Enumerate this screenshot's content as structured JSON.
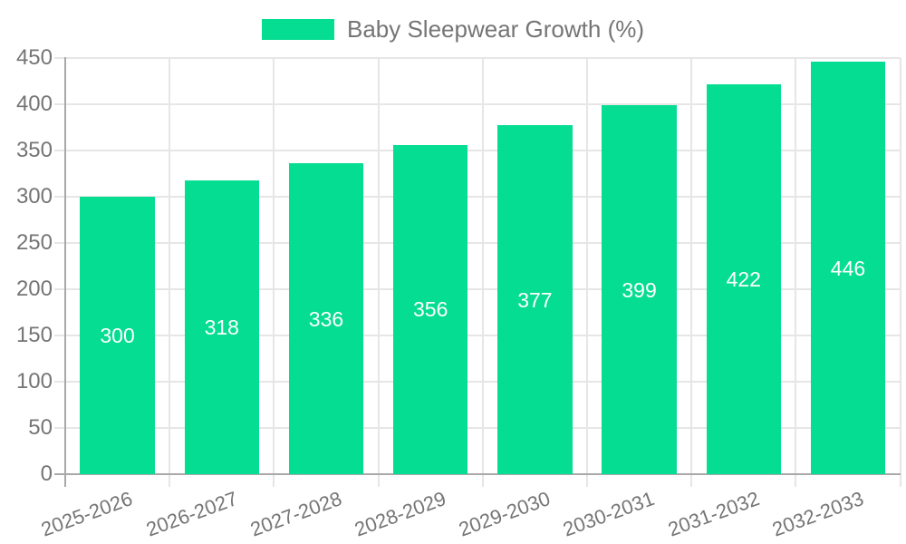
{
  "legend": {
    "label": "Baby Sleepwear Growth (%)"
  },
  "colors": {
    "bar": "#05DD92",
    "grid": "#e6e6e6",
    "axis": "#a9a9a9",
    "tick_label": "#757575",
    "value_label": "#ffffff",
    "background": "#ffffff"
  },
  "chart_data": {
    "type": "bar",
    "title": "Baby Sleepwear Growth (%)",
    "categories": [
      "2025-2026",
      "2026-2027",
      "2027-2028",
      "2028-2029",
      "2029-2030",
      "2030-2031",
      "2031-2032",
      "2032-2033"
    ],
    "values": [
      300,
      318,
      336,
      356,
      377,
      399,
      422,
      446
    ],
    "series": [
      {
        "name": "Baby Sleepwear Growth (%)",
        "values": [
          300,
          318,
          336,
          356,
          377,
          399,
          422,
          446
        ]
      }
    ],
    "yticks": [
      0,
      50,
      100,
      150,
      200,
      250,
      300,
      350,
      400,
      450
    ],
    "ylim": [
      0,
      450
    ],
    "xlabel": "",
    "ylabel": "",
    "grid": true,
    "legend_position": "top",
    "bar_labels_inside": true,
    "x_label_rotation_deg": -20
  }
}
